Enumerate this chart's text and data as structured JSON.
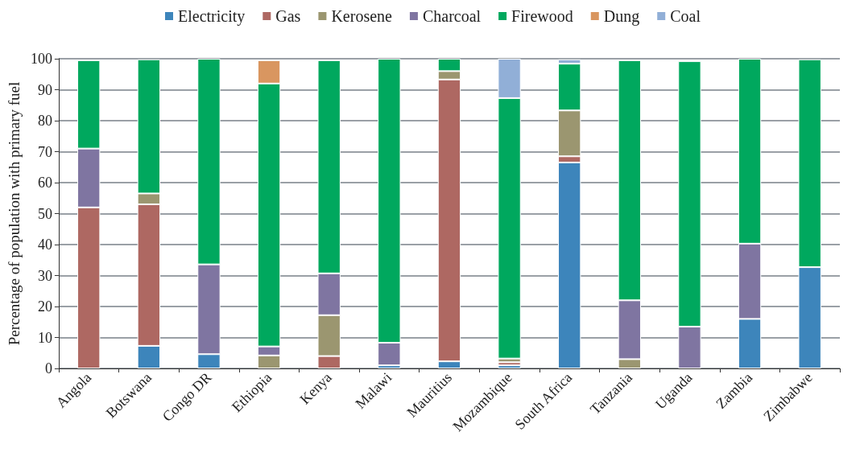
{
  "chart_data": {
    "type": "bar",
    "stacked": true,
    "ylabel": "Percentage of population with primary fuel",
    "categories": [
      "Angola",
      "Botswana",
      "Congo DR",
      "Ethiopia",
      "Kenya",
      "Malawi",
      "Mauritius",
      "Mozambique",
      "South Africa",
      "Tanzania",
      "Uganda",
      "Zambia",
      "Zimbabwe"
    ],
    "series": [
      {
        "name": "Electricity",
        "color": "#3d85bb",
        "values": [
          null,
          7.3,
          4.6,
          null,
          null,
          1,
          2.3,
          1,
          66.5,
          null,
          null,
          16,
          32.7
        ]
      },
      {
        "name": "Gas",
        "color": "#ae6862",
        "values": [
          52,
          45.7,
          null,
          null,
          4,
          null,
          91,
          1,
          2,
          null,
          null,
          null,
          null
        ]
      },
      {
        "name": "Kerosene",
        "color": "#9b9670",
        "values": [
          null,
          3.5,
          null,
          4.2,
          13.2,
          null,
          2.7,
          1.2,
          14.8,
          3,
          null,
          null,
          null
        ]
      },
      {
        "name": "Charcoal",
        "color": "#7f75a1",
        "values": [
          19,
          null,
          29,
          2.9,
          13.5,
          7.3,
          null,
          null,
          null,
          19,
          13.5,
          24.3,
          null
        ]
      },
      {
        "name": "Firewood",
        "color": "#00a85e",
        "values": [
          28.5,
          43.3,
          66.4,
          84.9,
          68.8,
          91.7,
          4,
          84.1,
          15.1,
          77.5,
          85.7,
          59.7,
          67.1
        ]
      },
      {
        "name": "Dung",
        "color": "#d99660",
        "values": [
          null,
          null,
          null,
          7.5,
          null,
          null,
          null,
          null,
          null,
          null,
          null,
          null,
          null
        ]
      },
      {
        "name": "Coal",
        "color": "#91afd7",
        "values": [
          null,
          null,
          null,
          null,
          null,
          null,
          null,
          12.7,
          1.4,
          null,
          null,
          null,
          null
        ]
      }
    ],
    "ylim": [
      0,
      100
    ],
    "yticks": [
      0,
      10,
      20,
      30,
      40,
      50,
      60,
      70,
      80,
      90,
      100
    ],
    "grid": "y",
    "legend": "top"
  }
}
